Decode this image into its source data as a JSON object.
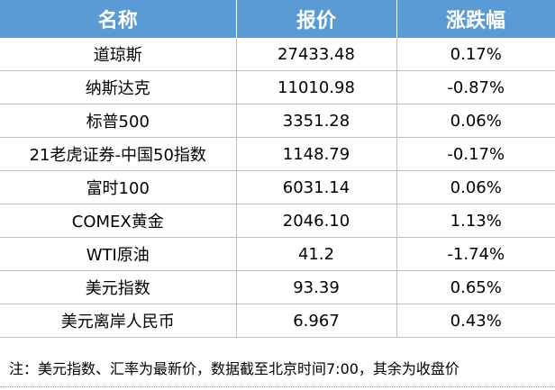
{
  "table": {
    "header": [
      "名称",
      "报价",
      "涨跌幅"
    ],
    "rows": [
      [
        "道琼斯",
        "27433.48",
        "0.17%"
      ],
      [
        "纳斯达克",
        "11010.98",
        "-0.87%"
      ],
      [
        "标普500",
        "3351.28",
        "0.06%"
      ],
      [
        "21老虎证券-中国50指数",
        "1148.79",
        "-0.17%"
      ],
      [
        "富时100",
        "6031.14",
        "0.06%"
      ],
      [
        "COMEX黄金",
        "2046.10",
        "1.13%"
      ],
      [
        "WTI原油",
        "41.2",
        "-1.74%"
      ],
      [
        "美元指数",
        "93.39",
        "0.65%"
      ],
      [
        "美元离岸人民币",
        "6.967",
        "0.43%"
      ]
    ]
  },
  "note": "注：美元指数、汇率为最新价，数据截至北京时间7:00，其余为收盘价"
}
